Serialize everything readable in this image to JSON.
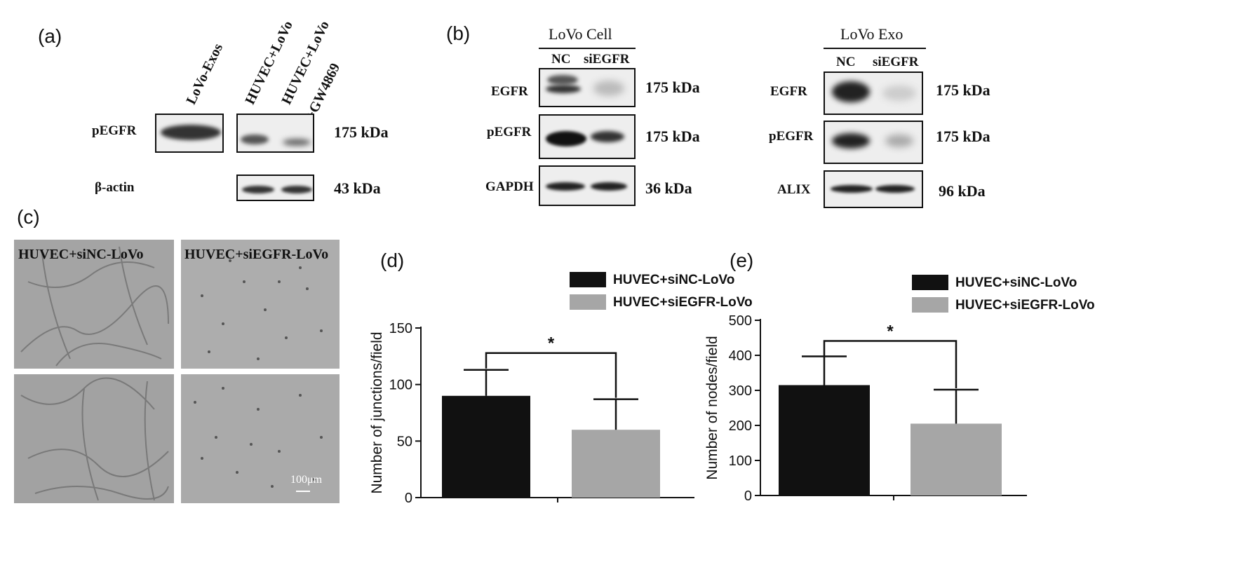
{
  "panel_a": {
    "label": "(a)",
    "lanes": [
      "LoVo-Exos",
      "HUVEC+LoVo",
      "HUVEC+LoVo",
      "+GW4869"
    ],
    "rows": [
      {
        "name": "pEGFR",
        "kda": "175 kDa"
      },
      {
        "name": "β-actin",
        "kda": "43 kDa"
      }
    ]
  },
  "panel_b": {
    "label": "(b)",
    "cell": {
      "title": "LoVo Cell",
      "lanes": [
        "NC",
        "siEGFR"
      ],
      "rows": [
        {
          "name": "EGFR",
          "kda": "175 kDa"
        },
        {
          "name": "pEGFR",
          "kda": "175 kDa"
        },
        {
          "name": "GAPDH",
          "kda": "36 kDa"
        }
      ]
    },
    "exo": {
      "title": "LoVo Exo",
      "lanes": [
        "NC",
        "siEGFR"
      ],
      "rows": [
        {
          "name": "EGFR",
          "kda": "175 kDa"
        },
        {
          "name": "pEGFR",
          "kda": "175 kDa"
        },
        {
          "name": "ALIX",
          "kda": "96 kDa"
        }
      ]
    }
  },
  "panel_c": {
    "label": "(c)",
    "image_labels": [
      "HUVEC+siNC-LoVo",
      "HUVEC+siEGFR-LoVo"
    ],
    "scale_bar": "100μm"
  },
  "chart_data": [
    {
      "panel_label": "(d)",
      "type": "bar",
      "categories": [
        "HUVEC+siNC-LoVo",
        "HUVEC+siEGFR-LoVo"
      ],
      "values": [
        90,
        60
      ],
      "errors": [
        23,
        27
      ],
      "ylabel": "Number of junctions/field",
      "ylim": [
        0,
        150
      ],
      "yticks": [
        "0",
        "50",
        "100",
        "150"
      ],
      "colors": [
        "#111111",
        "#a6a6a6"
      ],
      "significance": "*",
      "legend_position": "top-right"
    },
    {
      "panel_label": "(e)",
      "type": "bar",
      "categories": [
        "HUVEC+siNC-LoVo",
        "HUVEC+siEGFR-LoVo"
      ],
      "values": [
        315,
        205
      ],
      "errors": [
        82,
        97
      ],
      "ylabel": "Number of nodes/field",
      "ylim": [
        0,
        500
      ],
      "yticks": [
        "0",
        "100",
        "200",
        "300",
        "400",
        "500"
      ],
      "colors": [
        "#111111",
        "#a6a6a6"
      ],
      "significance": "*",
      "legend_position": "top-right"
    }
  ]
}
